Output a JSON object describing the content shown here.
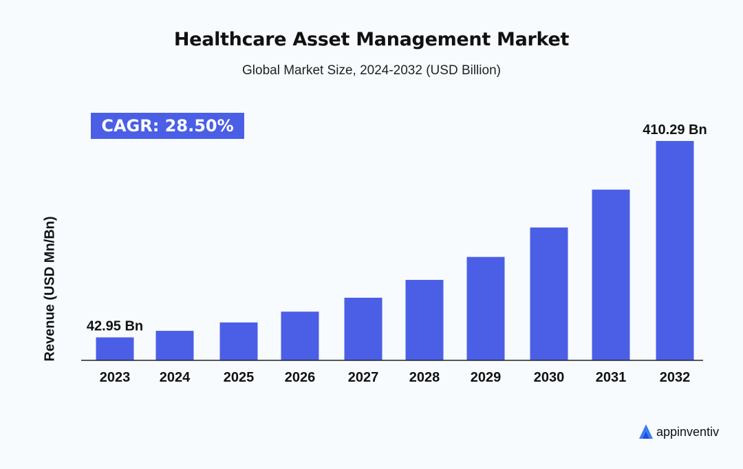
{
  "chart_data": {
    "type": "bar",
    "title": "Healthcare Asset Management Market",
    "subtitle": "Global Market Size, 2024-2032 (USD Billion)",
    "ylabel": "Revenue (USD Mn/Bn)",
    "xlabel": "",
    "categories": [
      "2023",
      "2024",
      "2025",
      "2026",
      "2027",
      "2028",
      "2029",
      "2030",
      "2031",
      "2032"
    ],
    "values": [
      42.95,
      55.2,
      70.9,
      91.1,
      117.1,
      150.5,
      193.4,
      248.5,
      319.3,
      410.29
    ],
    "data_labels": [
      {
        "category": "2023",
        "text": "42.95 Bn"
      },
      {
        "category": "2032",
        "text": "410.29 Bn"
      }
    ],
    "annotation": "CAGR: 28.50%",
    "ylim": [
      0,
      410.29
    ],
    "grid": false,
    "colors": {
      "bar": "#4b5fe6",
      "axis": "#222222"
    }
  },
  "brand": {
    "name": "appinventiv",
    "logo_icon": "appinventiv-logo-icon"
  }
}
